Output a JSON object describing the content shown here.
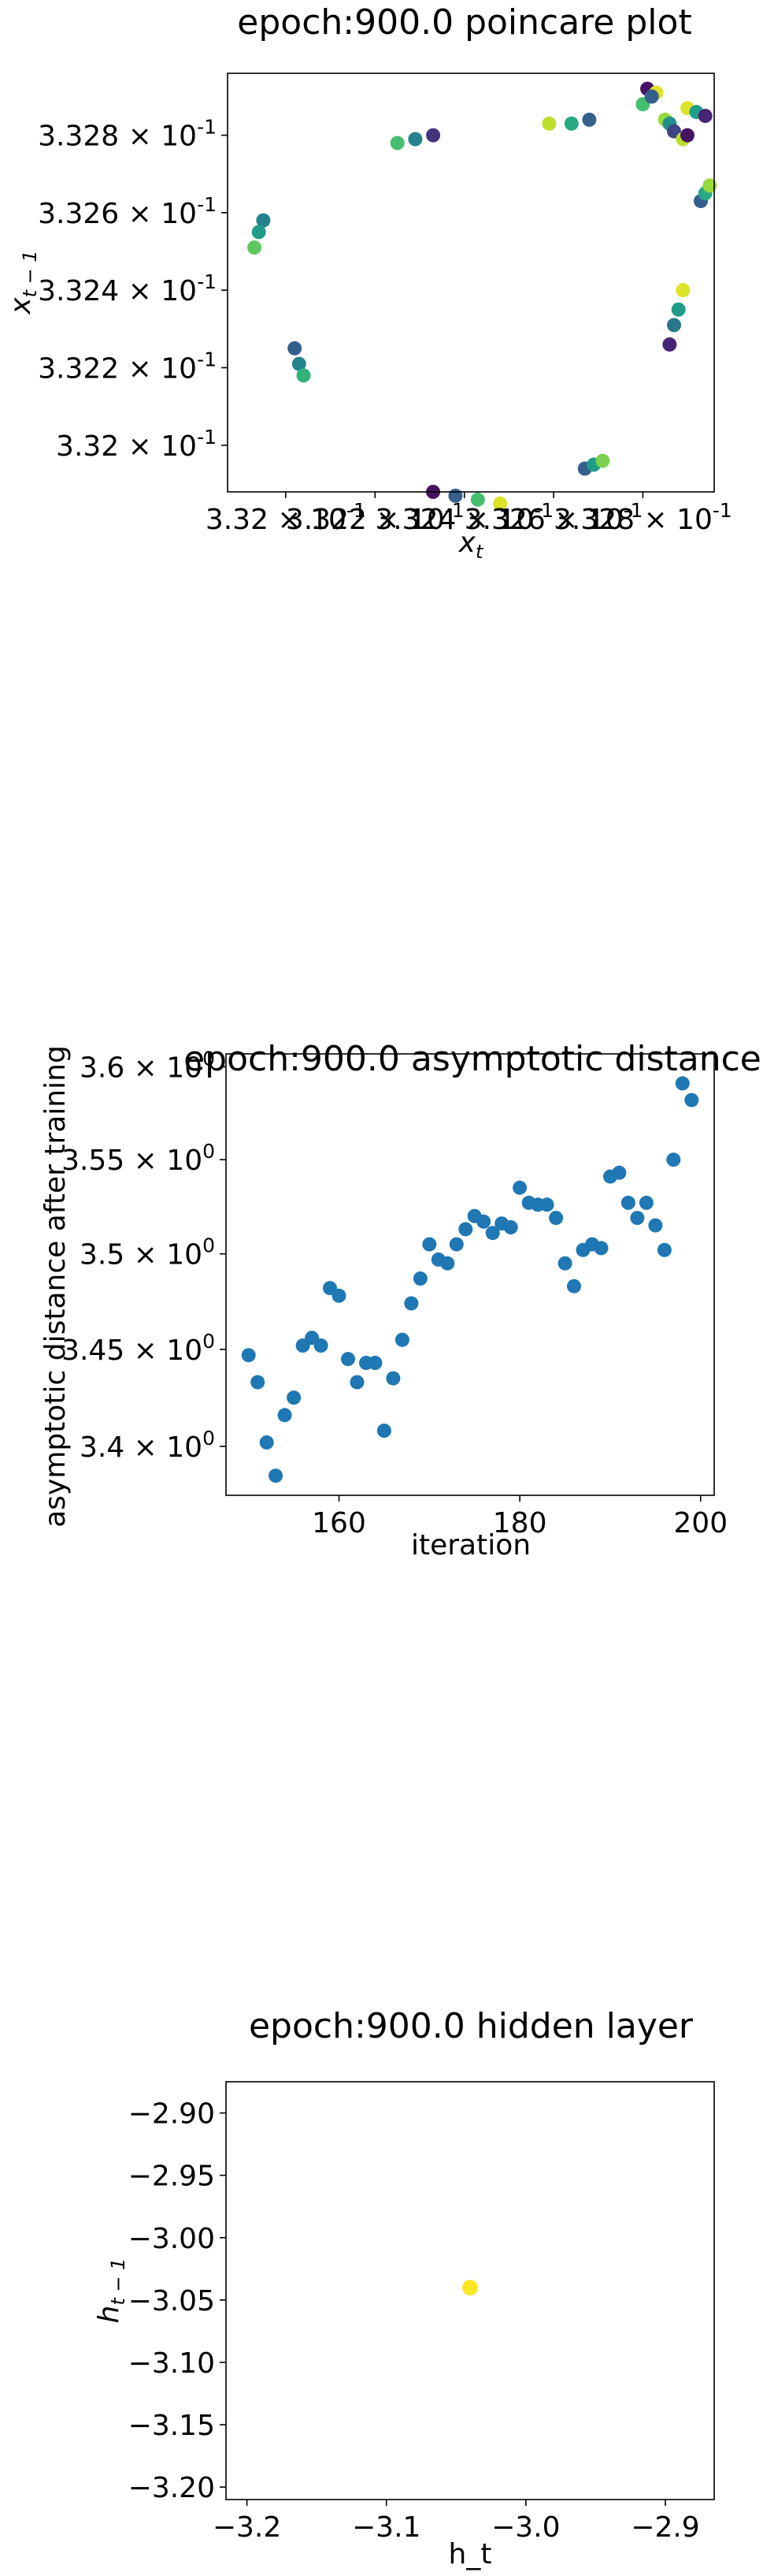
{
  "chart_data": [
    {
      "type": "scatter",
      "title": "epoch:900.0 poincare plot",
      "xlabel": "x_t",
      "ylabel": "x_{t-1}",
      "x_scale": "log",
      "y_scale": "log",
      "xlim": [
        0.33187,
        0.33296
      ],
      "ylim": [
        0.33188,
        0.33296
      ],
      "x_ticks": [
        {
          "value": 0.332,
          "mantissa": "3.32",
          "exp": "-1"
        },
        {
          "value": 0.3322,
          "mantissa": "3.322",
          "exp": "-1"
        },
        {
          "value": 0.3324,
          "mantissa": "3.324",
          "exp": "-1"
        },
        {
          "value": 0.3326,
          "mantissa": "3.326",
          "exp": "-1"
        },
        {
          "value": 0.3328,
          "mantissa": "3.328",
          "exp": "-1"
        }
      ],
      "y_ticks": [
        {
          "value": 0.332,
          "mantissa": "3.32",
          "exp": "-1"
        },
        {
          "value": 0.3322,
          "mantissa": "3.322",
          "exp": "-1"
        },
        {
          "value": 0.3324,
          "mantissa": "3.324",
          "exp": "-1"
        },
        {
          "value": 0.3326,
          "mantissa": "3.326",
          "exp": "-1"
        },
        {
          "value": 0.3328,
          "mantissa": "3.328",
          "exp": "-1"
        }
      ],
      "colormap": "viridis",
      "points": [
        {
          "x": 0.33195,
          "y": 0.33258,
          "c": 0.45
        },
        {
          "x": 0.33194,
          "y": 0.33255,
          "c": 0.55
        },
        {
          "x": 0.33193,
          "y": 0.33251,
          "c": 0.75
        },
        {
          "x": 0.33202,
          "y": 0.33225,
          "c": 0.3
        },
        {
          "x": 0.33203,
          "y": 0.33221,
          "c": 0.45
        },
        {
          "x": 0.33204,
          "y": 0.33218,
          "c": 0.65
        },
        {
          "x": 0.33225,
          "y": 0.33278,
          "c": 0.7
        },
        {
          "x": 0.33229,
          "y": 0.33279,
          "c": 0.45
        },
        {
          "x": 0.33233,
          "y": 0.3328,
          "c": 0.15
        },
        {
          "x": 0.33233,
          "y": 0.33188,
          "c": 0.05
        },
        {
          "x": 0.33238,
          "y": 0.33187,
          "c": 0.3
        },
        {
          "x": 0.33243,
          "y": 0.33186,
          "c": 0.7
        },
        {
          "x": 0.33248,
          "y": 0.33185,
          "c": 0.95
        },
        {
          "x": 0.33259,
          "y": 0.33283,
          "c": 0.9
        },
        {
          "x": 0.33264,
          "y": 0.33283,
          "c": 0.6
        },
        {
          "x": 0.33268,
          "y": 0.33284,
          "c": 0.3
        },
        {
          "x": 0.33267,
          "y": 0.33194,
          "c": 0.3
        },
        {
          "x": 0.33269,
          "y": 0.33195,
          "c": 0.55
        },
        {
          "x": 0.33271,
          "y": 0.33196,
          "c": 0.8
        },
        {
          "x": 0.33281,
          "y": 0.33292,
          "c": 0.05
        },
        {
          "x": 0.33283,
          "y": 0.33291,
          "c": 0.95
        },
        {
          "x": 0.3328,
          "y": 0.33288,
          "c": 0.7
        },
        {
          "x": 0.33282,
          "y": 0.3329,
          "c": 0.3
        },
        {
          "x": 0.33285,
          "y": 0.33284,
          "c": 0.85
        },
        {
          "x": 0.33286,
          "y": 0.33283,
          "c": 0.5
        },
        {
          "x": 0.33287,
          "y": 0.33281,
          "c": 0.2
        },
        {
          "x": 0.33289,
          "y": 0.33279,
          "c": 0.9
        },
        {
          "x": 0.3329,
          "y": 0.33287,
          "c": 0.95
        },
        {
          "x": 0.33292,
          "y": 0.33286,
          "c": 0.55
        },
        {
          "x": 0.33294,
          "y": 0.33285,
          "c": 0.1
        },
        {
          "x": 0.3329,
          "y": 0.3328,
          "c": 0.05
        },
        {
          "x": 0.33293,
          "y": 0.33263,
          "c": 0.3
        },
        {
          "x": 0.33294,
          "y": 0.33265,
          "c": 0.6
        },
        {
          "x": 0.33295,
          "y": 0.33267,
          "c": 0.85
        },
        {
          "x": 0.33289,
          "y": 0.3324,
          "c": 0.95
        },
        {
          "x": 0.33288,
          "y": 0.33235,
          "c": 0.55
        },
        {
          "x": 0.33287,
          "y": 0.33231,
          "c": 0.4
        },
        {
          "x": 0.33286,
          "y": 0.33226,
          "c": 0.1
        }
      ]
    },
    {
      "type": "scatter",
      "title": "epoch:900.0 asymptotic distance",
      "xlabel": "iteration",
      "ylabel": "asymptotic distance after training",
      "y_scale": "log",
      "xlim": [
        147.5,
        201.5
      ],
      "ylim": [
        3.375,
        3.607
      ],
      "x_ticks": [
        {
          "value": 160,
          "label": "160"
        },
        {
          "value": 180,
          "label": "180"
        },
        {
          "value": 200,
          "label": "200"
        }
      ],
      "y_ticks": [
        {
          "value": 3.4,
          "mantissa": "3.4",
          "exp": "0"
        },
        {
          "value": 3.45,
          "mantissa": "3.45",
          "exp": "0"
        },
        {
          "value": 3.5,
          "mantissa": "3.5",
          "exp": "0"
        },
        {
          "value": 3.55,
          "mantissa": "3.55",
          "exp": "0"
        },
        {
          "value": 3.6,
          "mantissa": "3.6",
          "exp": "0"
        }
      ],
      "color": "#1f77b4",
      "x": [
        150,
        151,
        152,
        153,
        154,
        155,
        156,
        157,
        158,
        159,
        160,
        161,
        162,
        163,
        164,
        165,
        166,
        167,
        168,
        169,
        170,
        171,
        172,
        173,
        174,
        175,
        176,
        177,
        178,
        179,
        180,
        181,
        182,
        183,
        184,
        185,
        186,
        187,
        188,
        189,
        190,
        191,
        192,
        193,
        194,
        195,
        196,
        197,
        198,
        199
      ],
      "y": [
        3.447,
        3.433,
        3.402,
        3.385,
        3.416,
        3.425,
        3.452,
        3.456,
        3.452,
        3.482,
        3.478,
        3.445,
        3.433,
        3.443,
        3.443,
        3.408,
        3.435,
        3.455,
        3.474,
        3.487,
        3.505,
        3.497,
        3.495,
        3.505,
        3.513,
        3.52,
        3.517,
        3.511,
        3.516,
        3.514,
        3.535,
        3.527,
        3.526,
        3.526,
        3.519,
        3.495,
        3.483,
        3.502,
        3.505,
        3.503,
        3.541,
        3.543,
        3.527,
        3.519,
        3.527,
        3.515,
        3.502,
        3.55,
        3.591,
        3.582
      ]
    },
    {
      "type": "scatter",
      "title": "epoch:900.0 hidden layer",
      "xlabel": "h_t",
      "ylabel": "h_{t-1}",
      "xlim": [
        -3.215,
        -2.865
      ],
      "ylim": [
        -3.21,
        -2.875
      ],
      "x_ticks": [
        {
          "value": -3.2,
          "label": "−3.2"
        },
        {
          "value": -3.1,
          "label": "−3.1"
        },
        {
          "value": -3.0,
          "label": "−3.0"
        },
        {
          "value": -2.9,
          "label": "−2.9"
        }
      ],
      "y_ticks": [
        {
          "value": -2.9,
          "label": "−2.90"
        },
        {
          "value": -2.95,
          "label": "−2.95"
        },
        {
          "value": -3.0,
          "label": "−3.00"
        },
        {
          "value": -3.05,
          "label": "−3.05"
        },
        {
          "value": -3.1,
          "label": "−3.10"
        },
        {
          "value": -3.15,
          "label": "−3.15"
        },
        {
          "value": -3.2,
          "label": "−3.20"
        }
      ],
      "color": "#fde725",
      "points": [
        {
          "x": -3.04,
          "y": -3.04
        }
      ]
    }
  ]
}
